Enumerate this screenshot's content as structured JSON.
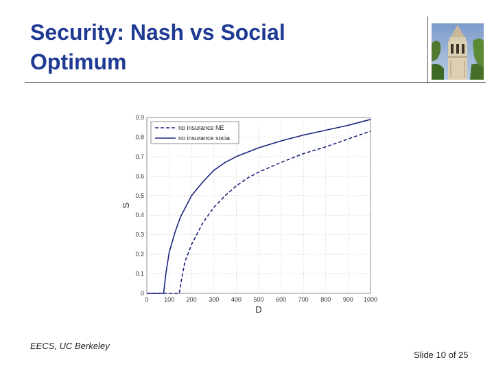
{
  "slide": {
    "title_line1": "Security: Nash vs Social",
    "title_line2": "Optimum",
    "footer_org": "EECS, UC Berkeley",
    "footer_slide": "Slide 10 of 25",
    "image_icon": "campanile-photo",
    "colors": {
      "title": "#1f3a93",
      "series": "#1a237e",
      "rule": "#333333"
    }
  },
  "chart_data": {
    "type": "line",
    "xlabel": "D",
    "ylabel": "S",
    "xlim": [
      0,
      1000
    ],
    "ylim": [
      0,
      0.9
    ],
    "x_ticks": [
      "0",
      "100",
      "200",
      "300",
      "400",
      "500",
      "600",
      "700",
      "800",
      "900",
      "1000"
    ],
    "y_ticks": [
      "0",
      "0.1",
      "0.2",
      "0.3",
      "0.4",
      "0.5",
      "0.6",
      "0.7",
      "0.8",
      "0.9"
    ],
    "grid": true,
    "legend_position": "top-left",
    "series": [
      {
        "name": "no insurance NE",
        "style": "dashed",
        "x": [
          0,
          145,
          155,
          170,
          200,
          250,
          300,
          350,
          400,
          450,
          500,
          600,
          700,
          800,
          900,
          1000
        ],
        "y": [
          0,
          0,
          0.07,
          0.16,
          0.25,
          0.36,
          0.44,
          0.5,
          0.55,
          0.59,
          0.62,
          0.67,
          0.715,
          0.75,
          0.79,
          0.83
        ]
      },
      {
        "name": "no insurance socia",
        "style": "solid",
        "x": [
          0,
          75,
          85,
          100,
          125,
          150,
          200,
          250,
          300,
          350,
          400,
          500,
          600,
          700,
          800,
          900,
          1000
        ],
        "y": [
          0,
          0,
          0.1,
          0.21,
          0.31,
          0.39,
          0.5,
          0.57,
          0.63,
          0.67,
          0.7,
          0.745,
          0.78,
          0.81,
          0.835,
          0.86,
          0.89
        ]
      }
    ]
  }
}
